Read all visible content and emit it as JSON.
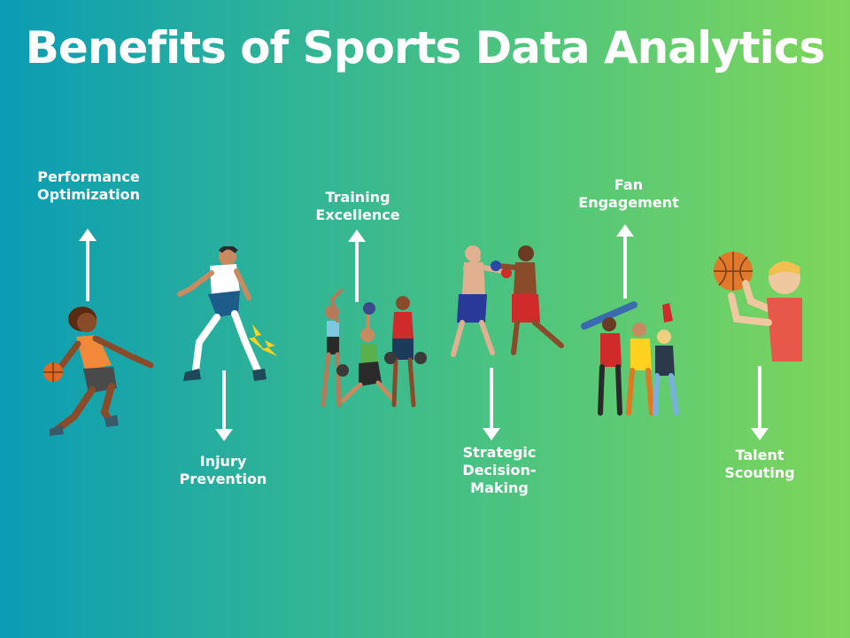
{
  "title": "Benefits of Sports Data Analytics",
  "benefits": [
    {
      "label": "Performance\nOptimization",
      "arrow": "up",
      "illustration": "basketball-dribbler-icon"
    },
    {
      "label": "Injury\nPrevention",
      "arrow": "down",
      "illustration": "soccer-player-injury-icon"
    },
    {
      "label": "Training\nExcellence",
      "arrow": "up",
      "illustration": "gym-training-group-icon"
    },
    {
      "label": "Strategic\nDecision-\nMaking",
      "arrow": "down",
      "illustration": "boxers-sparring-icon"
    },
    {
      "label": "Fan\nEngagement",
      "arrow": "up",
      "illustration": "cheering-fans-icon"
    },
    {
      "label": "Talent\nScouting",
      "arrow": "down",
      "illustration": "basketball-shooter-icon"
    }
  ],
  "colors": {
    "background_start": "#0a9cb5",
    "background_end": "#7fd65a",
    "text": "#ffffff",
    "arrow": "#ffffff"
  }
}
